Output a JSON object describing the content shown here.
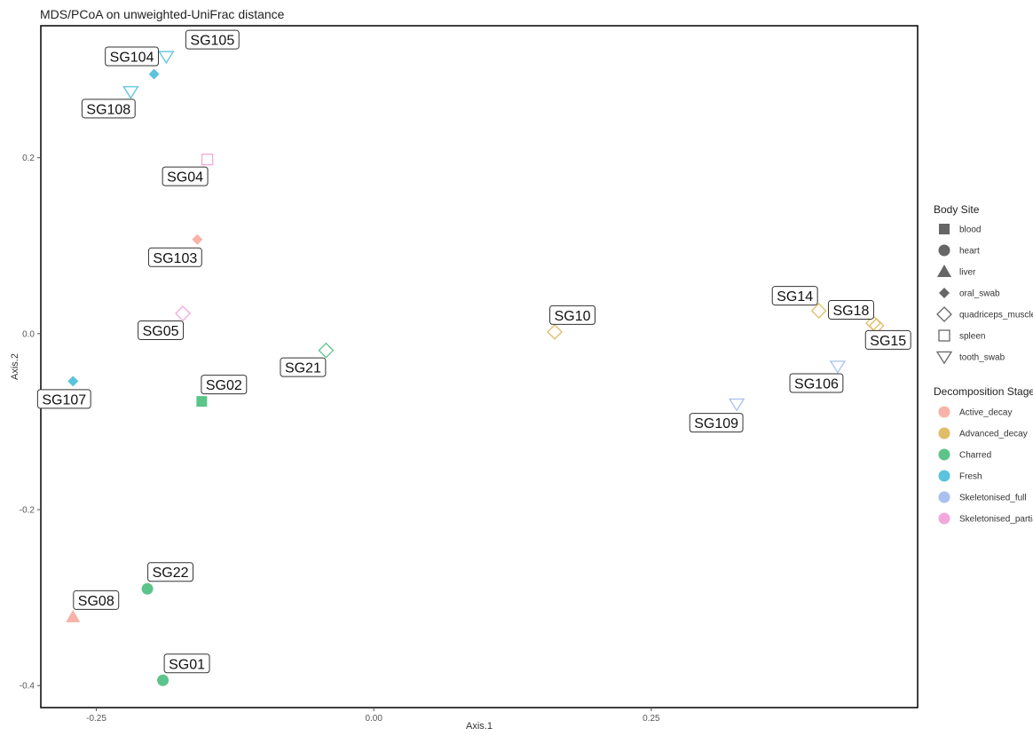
{
  "chart_data": {
    "type": "scatter",
    "title": "MDS/PCoA on unweighted-UniFrac distance",
    "xlabel": "Axis.1",
    "ylabel": "Axis.2",
    "xlim": [
      -0.3,
      0.49
    ],
    "ylim": [
      -0.425,
      0.35
    ],
    "x_ticks": [
      -0.25,
      0.0,
      0.25
    ],
    "x_tick_labels": [
      "-0.25",
      "0.00",
      "0.25"
    ],
    "y_ticks": [
      -0.4,
      -0.2,
      0.0,
      0.2
    ],
    "y_tick_labels": [
      "-0.4",
      "-0.2",
      "0.0",
      "0.2"
    ],
    "grid": false,
    "legend_position": "right",
    "legend_shape": {
      "title": "Body Site",
      "entries": [
        {
          "label": "blood",
          "shape": "square"
        },
        {
          "label": "heart",
          "shape": "circle"
        },
        {
          "label": "liver",
          "shape": "triangle"
        },
        {
          "label": "oral_swab",
          "shape": "diamond"
        },
        {
          "label": "quadriceps_muscle",
          "shape": "diamond-open"
        },
        {
          "label": "spleen",
          "shape": "square-open"
        },
        {
          "label": "tooth_swab",
          "shape": "triangle-down-open"
        }
      ]
    },
    "legend_color": {
      "title": "Decomposition Stage",
      "entries": [
        {
          "label": "Active_decay",
          "color": "#f8b3a8"
        },
        {
          "label": "Advanced_decay",
          "color": "#e0bd66"
        },
        {
          "label": "Charred",
          "color": "#5cc48a"
        },
        {
          "label": "Fresh",
          "color": "#5bc3de"
        },
        {
          "label": "Skeletonised_full",
          "color": "#a9c0f0"
        },
        {
          "label": "Skeletonised_partial",
          "color": "#f2a8dd"
        }
      ]
    },
    "points": [
      {
        "id": "SG105",
        "x": -0.187,
        "y": 0.315,
        "shape": "tooth_swab",
        "stage": "Fresh"
      },
      {
        "id": "SG104",
        "x": -0.198,
        "y": 0.295,
        "shape": "oral_swab",
        "stage": "Fresh"
      },
      {
        "id": "SG108",
        "x": -0.219,
        "y": 0.275,
        "shape": "tooth_swab",
        "stage": "Fresh"
      },
      {
        "id": "SG04",
        "x": -0.15,
        "y": 0.198,
        "shape": "spleen",
        "stage": "Skeletonised_partial"
      },
      {
        "id": "SG103",
        "x": -0.159,
        "y": 0.107,
        "shape": "oral_swab",
        "stage": "Active_decay"
      },
      {
        "id": "SG05",
        "x": -0.172,
        "y": 0.023,
        "shape": "quadriceps_muscle",
        "stage": "Skeletonised_partial"
      },
      {
        "id": "SG21",
        "x": -0.043,
        "y": -0.019,
        "shape": "quadriceps_muscle",
        "stage": "Charred"
      },
      {
        "id": "SG107",
        "x": -0.271,
        "y": -0.054,
        "shape": "oral_swab",
        "stage": "Fresh"
      },
      {
        "id": "SG02",
        "x": -0.155,
        "y": -0.077,
        "shape": "blood",
        "stage": "Charred"
      },
      {
        "id": "SG10",
        "x": 0.163,
        "y": 0.002,
        "shape": "quadriceps_muscle",
        "stage": "Advanced_decay"
      },
      {
        "id": "SG14",
        "x": 0.401,
        "y": 0.026,
        "shape": "quadriceps_muscle",
        "stage": "Advanced_decay"
      },
      {
        "id": "SG18",
        "x": 0.45,
        "y": 0.012,
        "shape": "quadriceps_muscle",
        "stage": "Advanced_decay"
      },
      {
        "id": "SG15",
        "x": 0.453,
        "y": 0.009,
        "shape": "quadriceps_muscle",
        "stage": "Advanced_decay"
      },
      {
        "id": "SG106",
        "x": 0.418,
        "y": -0.037,
        "shape": "tooth_swab",
        "stage": "Skeletonised_full"
      },
      {
        "id": "SG109",
        "x": 0.327,
        "y": -0.08,
        "shape": "tooth_swab",
        "stage": "Skeletonised_full"
      },
      {
        "id": "SG22",
        "x": -0.204,
        "y": -0.29,
        "shape": "heart",
        "stage": "Charred"
      },
      {
        "id": "SG08",
        "x": -0.271,
        "y": -0.322,
        "shape": "liver",
        "stage": "Active_decay"
      },
      {
        "id": "SG01",
        "x": -0.19,
        "y": -0.394,
        "shape": "heart",
        "stage": "Charred"
      }
    ]
  }
}
